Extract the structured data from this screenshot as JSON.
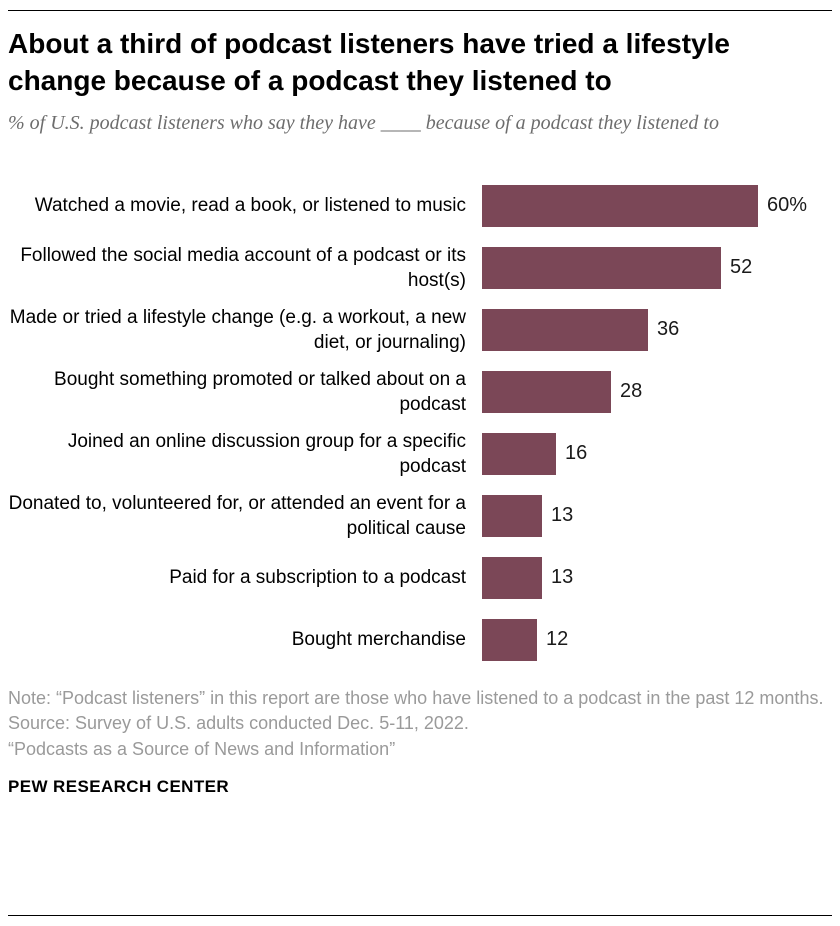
{
  "header": {
    "title": "About a third of podcast listeners have tried a lifestyle change because of a podcast they listened to",
    "subtitle": "% of U.S. podcast listeners who say they have ____ because of a podcast they listened to"
  },
  "chart_data": {
    "type": "bar",
    "orientation": "horizontal",
    "title": "About a third of podcast listeners have tried a lifestyle change because of a podcast they listened to",
    "subtitle": "% of U.S. podcast listeners who say they have ____ because of a podcast they listened to",
    "xlabel": "",
    "ylabel": "",
    "xlim": [
      0,
      65
    ],
    "grid": false,
    "legend": "none",
    "bar_color": "#7b4757",
    "categories": [
      "Watched a movie, read a book, or listened to music",
      "Followed the social media account of a podcast or its host(s)",
      "Made or tried a lifestyle change (e.g. a workout, a new diet, or journaling)",
      "Bought something promoted or talked about on a podcast",
      "Joined an online discussion group for a specific podcast",
      "Donated to, volunteered for, or attended an event for a political cause",
      "Paid for a subscription to a podcast",
      "Bought merchandise"
    ],
    "values": [
      60,
      52,
      36,
      28,
      16,
      13,
      13,
      12
    ],
    "value_labels": [
      "60%",
      "52",
      "36",
      "28",
      "16",
      "13",
      "13",
      "12"
    ]
  },
  "footer": {
    "note": "Note: “Podcast listeners” in this report are those who have listened to a podcast in the past 12 months.",
    "source": "Source: Survey of U.S. adults conducted Dec. 5-11, 2022.",
    "report": "“Podcasts as a Source of News and Information”",
    "brand": "PEW RESEARCH CENTER"
  }
}
